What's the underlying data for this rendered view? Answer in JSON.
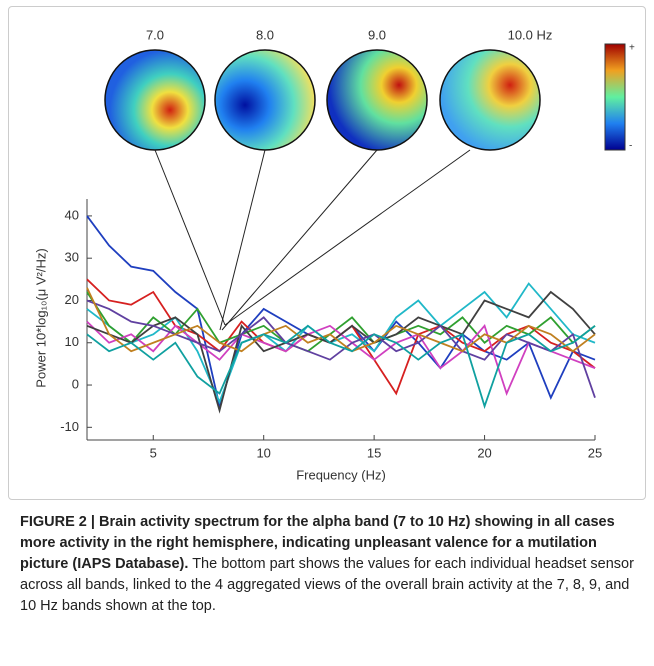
{
  "maps": {
    "labels": [
      "7.0",
      "8.0",
      "9.0",
      "10.0 Hz"
    ],
    "colorbar_top": "+",
    "colorbar_bottom": "-"
  },
  "chart_data": {
    "type": "line",
    "y_label": "Power 10*log₁₀(μ V²/Hz)",
    "x_label": "Frequency (Hz)",
    "x": [
      2,
      3,
      4,
      5,
      6,
      7,
      8,
      9,
      10,
      11,
      12,
      13,
      14,
      15,
      16,
      17,
      18,
      19,
      20,
      21,
      22,
      23,
      24,
      25
    ],
    "xlim": [
      2,
      25
    ],
    "xticks": [
      5,
      10,
      15,
      20,
      25
    ],
    "ylim": [
      -13,
      44
    ],
    "yticks": [
      -10,
      0,
      10,
      20,
      30,
      40
    ],
    "series": [
      {
        "color": "#1f3fbf",
        "values": [
          40,
          33,
          28,
          27,
          22,
          18,
          -5,
          12,
          18,
          15,
          12,
          10,
          14,
          8,
          15,
          10,
          4,
          12,
          8,
          6,
          10,
          -3,
          8,
          6
        ]
      },
      {
        "color": "#d62020",
        "values": [
          25,
          20,
          19,
          22,
          14,
          12,
          8,
          15,
          10,
          8,
          12,
          10,
          14,
          6,
          -2,
          12,
          14,
          10,
          8,
          12,
          14,
          10,
          8,
          4
        ]
      },
      {
        "color": "#20b8c8",
        "values": [
          18,
          14,
          10,
          12,
          16,
          8,
          -4,
          10,
          12,
          8,
          14,
          10,
          12,
          8,
          16,
          20,
          14,
          18,
          22,
          16,
          24,
          18,
          12,
          10
        ]
      },
      {
        "color": "#30a030",
        "values": [
          22,
          14,
          10,
          16,
          12,
          18,
          10,
          12,
          14,
          10,
          8,
          12,
          16,
          10,
          12,
          14,
          12,
          16,
          10,
          14,
          12,
          16,
          10,
          14
        ]
      },
      {
        "color": "#d040c0",
        "values": [
          15,
          10,
          12,
          8,
          14,
          10,
          6,
          12,
          10,
          8,
          12,
          14,
          10,
          6,
          10,
          12,
          4,
          8,
          14,
          -2,
          10,
          8,
          6,
          4
        ]
      },
      {
        "color": "#404040",
        "values": [
          14,
          12,
          10,
          14,
          16,
          12,
          -6,
          14,
          8,
          10,
          12,
          10,
          14,
          10,
          12,
          16,
          14,
          12,
          20,
          18,
          16,
          22,
          18,
          12
        ]
      },
      {
        "color": "#6040a0",
        "values": [
          20,
          18,
          15,
          14,
          12,
          10,
          8,
          12,
          16,
          10,
          8,
          6,
          10,
          12,
          8,
          10,
          14,
          8,
          6,
          12,
          10,
          8,
          12,
          -3
        ]
      },
      {
        "color": "#c08020",
        "values": [
          23,
          12,
          8,
          10,
          12,
          14,
          10,
          8,
          12,
          14,
          10,
          12,
          8,
          10,
          14,
          12,
          10,
          8,
          12,
          10,
          14,
          12,
          8,
          12
        ]
      },
      {
        "color": "#10a0a0",
        "values": [
          12,
          8,
          10,
          6,
          10,
          2,
          -2,
          10,
          12,
          10,
          14,
          10,
          8,
          12,
          10,
          6,
          10,
          12,
          -5,
          10,
          12,
          8,
          10,
          14
        ]
      }
    ]
  },
  "caption": {
    "bold": "FIGURE 2 | Brain activity spectrum for the alpha band (7 to 10 Hz) showing in all cases more activity in the right hemisphere, indicating unpleasant valence for a mutilation picture (IAPS Database).",
    "text": "The bottom part shows the values for each individual headset sensor across all bands, linked to the 4 aggregated views of the overall brain activity at the 7, 8, 9, and 10 Hz bands shown at the top."
  }
}
